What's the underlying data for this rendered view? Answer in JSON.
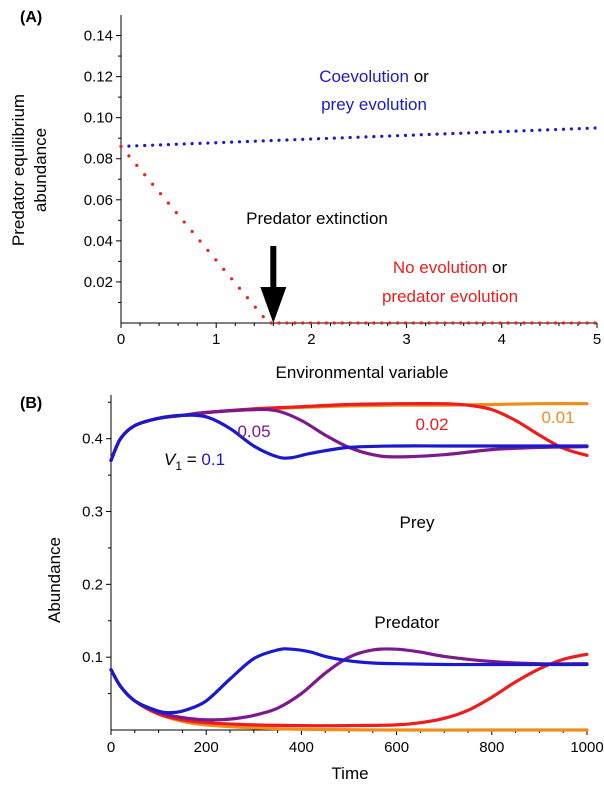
{
  "chart_data": [
    {
      "panel_label": "(A)",
      "type": "scatter",
      "marker": "dotted",
      "xlabel": "Environmental variable",
      "ylabel_lines": [
        "Predator equilibrium",
        "abundance"
      ],
      "xlim": [
        0,
        5
      ],
      "ylim": [
        0,
        0.15
      ],
      "xticks": [
        "0",
        "1",
        "2",
        "3",
        "4",
        "5"
      ],
      "xtick_values": [
        0,
        1,
        2,
        3,
        4,
        5
      ],
      "yticks": [
        "0.02",
        "0.04",
        "0.06",
        "0.08",
        "0.10",
        "0.12",
        "0.14"
      ],
      "ytick_values": [
        0.02,
        0.04,
        0.06,
        0.08,
        0.1,
        0.12,
        0.14
      ],
      "series": [
        {
          "color": "#1a1acc",
          "points": [
            [
              0,
              0.086
            ],
            [
              5,
              0.095
            ]
          ]
        },
        {
          "color": "#ee1c1c",
          "points": [
            [
              0,
              0.086
            ],
            [
              1.55,
              0.0
            ],
            [
              5,
              0.0
            ]
          ]
        }
      ],
      "annotations": {
        "blue_line1": "Coevolution",
        "blue_line1_suffix": " or",
        "blue_line2": "prey evolution",
        "red_line1": "No evolution",
        "red_line1_suffix": " or",
        "red_line2": "predator evolution",
        "extinction": "Predator extinction",
        "arrow_x": 1.6
      }
    },
    {
      "panel_label": "(B)",
      "type": "line",
      "xlabel": "Time",
      "ylabel": "Abundance",
      "xlim": [
        0,
        1000
      ],
      "ylim": [
        0,
        0.46
      ],
      "xticks": [
        "0",
        "200",
        "400",
        "600",
        "800",
        "1000"
      ],
      "xtick_values": [
        0,
        200,
        400,
        600,
        800,
        1000
      ],
      "yticks": [
        "0.1",
        "0.2",
        "0.3",
        "0.4"
      ],
      "ytick_values": [
        0.1,
        0.2,
        0.3,
        0.4
      ],
      "series": [
        {
          "group": "prey",
          "label": "0.1",
          "color": "#1a1acc",
          "x": [
            0,
            20,
            50,
            100,
            150,
            200,
            250,
            300,
            350,
            380,
            420,
            500,
            600,
            700,
            800,
            900,
            1000
          ],
          "y": [
            0.37,
            0.4,
            0.418,
            0.428,
            0.432,
            0.43,
            0.414,
            0.39,
            0.375,
            0.374,
            0.38,
            0.388,
            0.39,
            0.39,
            0.39,
            0.39,
            0.39
          ]
        },
        {
          "group": "prey",
          "label": "0.05",
          "color": "#7a1a8c",
          "x": [
            0,
            20,
            50,
            100,
            150,
            200,
            300,
            350,
            400,
            450,
            500,
            550,
            600,
            700,
            800,
            900,
            1000
          ],
          "y": [
            0.37,
            0.4,
            0.418,
            0.428,
            0.432,
            0.436,
            0.44,
            0.438,
            0.425,
            0.405,
            0.388,
            0.378,
            0.375,
            0.378,
            0.385,
            0.388,
            0.389
          ]
        },
        {
          "group": "prey",
          "label": "0.02",
          "color": "#ee1c1c",
          "x": [
            0,
            20,
            50,
            100,
            150,
            200,
            300,
            400,
            500,
            600,
            700,
            750,
            800,
            850,
            900,
            950,
            1000
          ],
          "y": [
            0.37,
            0.4,
            0.418,
            0.428,
            0.432,
            0.436,
            0.441,
            0.444,
            0.447,
            0.448,
            0.448,
            0.446,
            0.44,
            0.425,
            0.405,
            0.387,
            0.377
          ]
        },
        {
          "group": "prey",
          "label": "0.01",
          "color": "#f08c1a",
          "x": [
            0,
            20,
            50,
            100,
            150,
            200,
            300,
            400,
            500,
            600,
            700,
            800,
            900,
            1000
          ],
          "y": [
            0.37,
            0.4,
            0.418,
            0.428,
            0.432,
            0.436,
            0.44,
            0.443,
            0.445,
            0.446,
            0.446,
            0.447,
            0.448,
            0.448
          ]
        },
        {
          "group": "predator",
          "color": "#f08c1a",
          "x": [
            0,
            20,
            50,
            100,
            150,
            200,
            300,
            400,
            600,
            800,
            1000
          ],
          "y": [
            0.083,
            0.06,
            0.04,
            0.022,
            0.012,
            0.007,
            0.003,
            0.001,
            0.0,
            0.0,
            0.0
          ]
        },
        {
          "group": "predator",
          "color": "#ee1c1c",
          "x": [
            0,
            20,
            50,
            100,
            150,
            200,
            300,
            400,
            500,
            600,
            650,
            700,
            750,
            800,
            850,
            900,
            950,
            1000
          ],
          "y": [
            0.083,
            0.06,
            0.04,
            0.022,
            0.014,
            0.01,
            0.007,
            0.006,
            0.006,
            0.007,
            0.01,
            0.016,
            0.027,
            0.045,
            0.066,
            0.084,
            0.097,
            0.104
          ]
        },
        {
          "group": "predator",
          "color": "#7a1a8c",
          "x": [
            0,
            20,
            50,
            100,
            150,
            200,
            250,
            300,
            350,
            400,
            450,
            500,
            550,
            600,
            650,
            700,
            800,
            900,
            1000
          ],
          "y": [
            0.083,
            0.06,
            0.04,
            0.024,
            0.017,
            0.014,
            0.015,
            0.02,
            0.03,
            0.05,
            0.078,
            0.1,
            0.11,
            0.111,
            0.107,
            0.101,
            0.094,
            0.091,
            0.091
          ]
        },
        {
          "group": "predator",
          "color": "#1a1acc",
          "x": [
            0,
            20,
            50,
            100,
            130,
            160,
            200,
            250,
            300,
            350,
            380,
            420,
            450,
            500,
            550,
            600,
            700,
            800,
            1000
          ],
          "y": [
            0.083,
            0.06,
            0.04,
            0.026,
            0.024,
            0.028,
            0.04,
            0.07,
            0.098,
            0.11,
            0.111,
            0.107,
            0.101,
            0.095,
            0.092,
            0.091,
            0.09,
            0.09,
            0.09
          ]
        }
      ],
      "annotations": {
        "prey_label": "Prey",
        "predator_label": "Predator",
        "v1_prefix": "V",
        "v1_subscript": "1",
        "v1_equals": " = "
      }
    }
  ]
}
